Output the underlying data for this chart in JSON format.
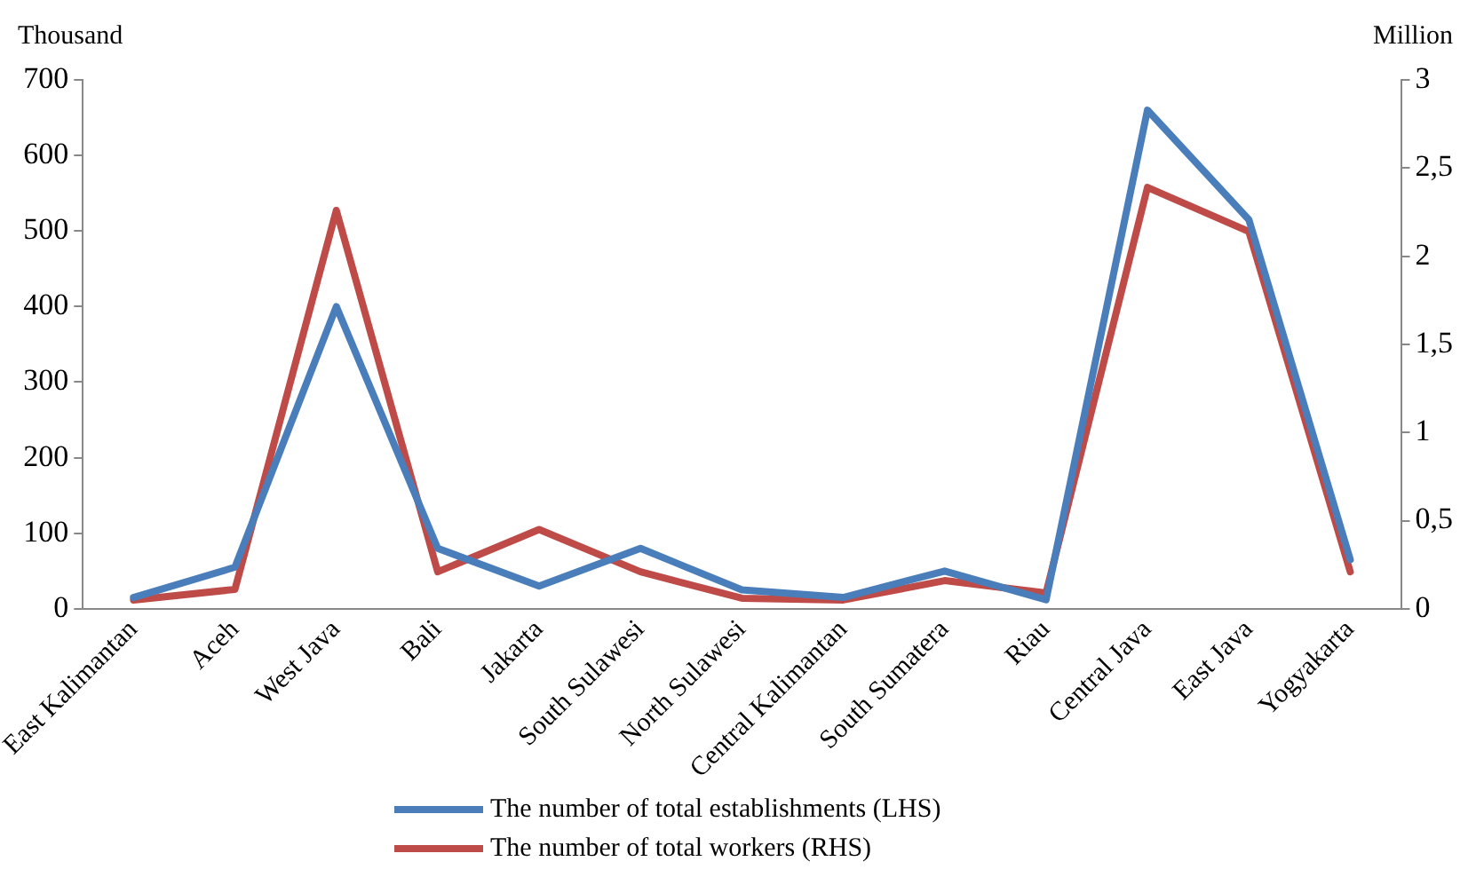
{
  "chart_data": {
    "type": "line",
    "ylabel": "Thousand",
    "y2label": "Million",
    "categories": [
      "East Kalimantan",
      "Aceh",
      "West Java",
      "Bali",
      "Jakarta",
      "South Sulawesi",
      "North Sulawesi",
      "Central Kalimantan",
      "South Sumatera",
      "Riau",
      "Central Java",
      "East Java",
      "Yogyakarta"
    ],
    "series": [
      {
        "name": "The number of total establishments (LHS)",
        "color": "#4a7ebb",
        "values": [
          15,
          55,
          400,
          80,
          30,
          80,
          25,
          15,
          50,
          12,
          660,
          515,
          65
        ]
      },
      {
        "name": "The number of total workers (RHS)",
        "color": "#be4b48",
        "axis": "y2",
        "values": [
          0.05,
          0.11,
          2.26,
          0.21,
          0.45,
          0.21,
          0.06,
          0.05,
          0.16,
          0.09,
          2.39,
          2.14,
          0.21
        ]
      }
    ],
    "ylim": [
      0,
      700
    ],
    "yticks": [
      0,
      100,
      200,
      300,
      400,
      500,
      600,
      700
    ],
    "y2lim": [
      0,
      3
    ],
    "y2ticks": [
      0,
      {
        "value": 0.5,
        "label": "0,5"
      },
      1,
      {
        "value": 1.5,
        "label": "1,5"
      },
      2,
      {
        "value": 2.5,
        "label": "2,5"
      },
      3
    ],
    "grid": false,
    "legend": "bottom",
    "marker": "none",
    "line_style": "solid"
  }
}
